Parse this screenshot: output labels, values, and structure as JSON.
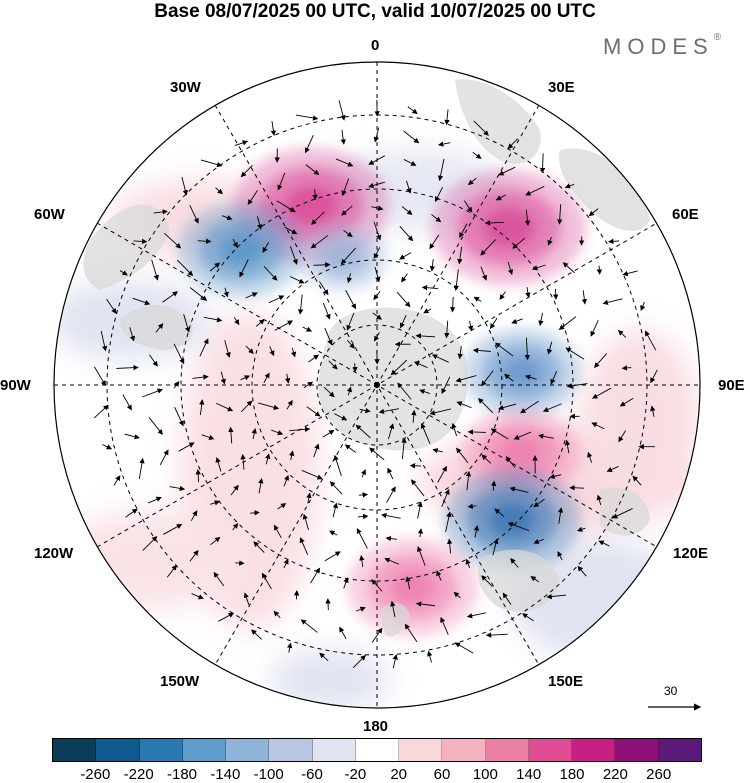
{
  "title": "Base 08/07/2025 00 UTC, valid 10/07/2025 00 UTC",
  "brand": "MODES",
  "brand_mark": "®",
  "map_labels": {
    "lon_0": "0",
    "lon_30e": "30E",
    "lon_60e": "60E",
    "lon_90e": "90E",
    "lon_120e": "120E",
    "lon_150e": "150E",
    "lon_180": "180",
    "lon_150w": "150W",
    "lon_120w": "120W",
    "lon_90w": "90W",
    "lon_60w": "60W",
    "lon_30w": "30W"
  },
  "reference_vector": {
    "value": "30"
  },
  "colorbar": {
    "colors": [
      "#0b3c5a",
      "#0f5a8c",
      "#2a79b3",
      "#5e9dcb",
      "#8fb3d9",
      "#b9c6e3",
      "#e2e4f1",
      "#ffffff",
      "#f9d8dc",
      "#f4b1bf",
      "#ec7fa4",
      "#e04c93",
      "#c81f83",
      "#8e117a",
      "#5c1a7a"
    ],
    "ticks": [
      "-260",
      "-220",
      "-180",
      "-140",
      "-100",
      "-60",
      "-20",
      "20",
      "60",
      "100",
      "140",
      "180",
      "220",
      "260"
    ]
  },
  "projection": "south-polar-stereographic",
  "anomaly_centers": [
    {
      "lon": -20,
      "lat": -45,
      "value": 200,
      "color": "#d94d9a"
    },
    {
      "lon": 40,
      "lat": -42,
      "value": 200,
      "color": "#d94d9a"
    },
    {
      "lon": -45,
      "lat": -45,
      "value": -140,
      "color": "#5a95c8"
    },
    {
      "lon": 85,
      "lat": -55,
      "value": -120,
      "color": "#6a97cc"
    },
    {
      "lon": -15,
      "lat": -58,
      "value": -60,
      "color": "#9bb4d8"
    },
    {
      "lon": 115,
      "lat": -52,
      "value": 120,
      "color": "#ee7fae"
    },
    {
      "lon": 135,
      "lat": -45,
      "value": -160,
      "color": "#3e78b5"
    },
    {
      "lon": 170,
      "lat": -42,
      "value": 150,
      "color": "#ee7fae"
    }
  ]
}
